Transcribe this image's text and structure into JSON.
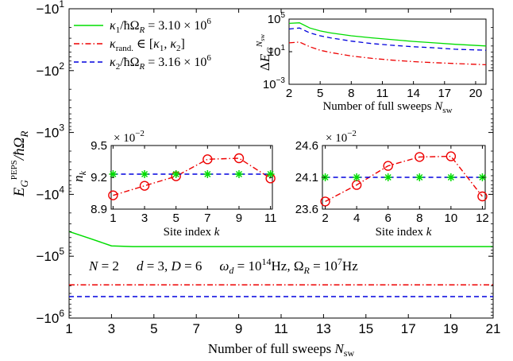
{
  "chart_data": [
    {
      "id": "main",
      "type": "line",
      "xlabel": "Number of full sweeps N_sw",
      "ylabel": "E_G^PEPS / ħΩ_R",
      "yscale": "log-negative",
      "xlim": [
        1,
        21
      ],
      "ylim": [
        -1000000,
        -10
      ],
      "xticks": [
        "1",
        "3",
        "5",
        "7",
        "9",
        "11",
        "13",
        "15",
        "17",
        "19",
        "21"
      ],
      "yticks": [
        {
          "base": "−10",
          "exp": "1"
        },
        {
          "base": "−10",
          "exp": "2"
        },
        {
          "base": "−10",
          "exp": "3"
        },
        {
          "base": "−10",
          "exp": "4"
        },
        {
          "base": "−10",
          "exp": "5"
        },
        {
          "base": "−10",
          "exp": "6"
        }
      ],
      "legend_position": "top-left",
      "annotation": "N = 2     d = 3, D = 6     ω_d = 10^14 Hz, Ω_R = 10^7 Hz",
      "series": [
        {
          "name": "κ1/ħΩ_R = 3.10 × 10^6",
          "color": "#00dd00",
          "dash": "solid",
          "x": [
            1,
            2,
            3,
            4,
            5,
            6,
            7,
            8,
            9,
            10,
            11,
            12,
            13,
            14,
            15,
            16,
            17,
            18,
            19,
            20,
            21
          ],
          "y": [
            -40000,
            -52000,
            -68000,
            -70000,
            -70000,
            -70000,
            -70000,
            -70000,
            -70000,
            -70000,
            -70000,
            -70000,
            -70000,
            -70000,
            -70000,
            -70000,
            -70000,
            -70000,
            -70000,
            -70000,
            -70000
          ]
        },
        {
          "name": "κ_rand. ∈ [κ1, κ2]",
          "color": "#ee0000",
          "dash": "dashdot",
          "x": [
            1,
            2,
            3,
            4,
            5,
            6,
            7,
            8,
            9,
            10,
            11,
            12,
            13,
            14,
            15,
            16,
            17,
            18,
            19,
            20,
            21
          ],
          "y": [
            -290000,
            -290000,
            -290000,
            -290000,
            -290000,
            -290000,
            -290000,
            -290000,
            -290000,
            -290000,
            -290000,
            -290000,
            -290000,
            -290000,
            -290000,
            -290000,
            -290000,
            -290000,
            -290000,
            -290000,
            -290000
          ]
        },
        {
          "name": "κ2/ħΩ_R = 3.16 × 10^6",
          "color": "#0000dd",
          "dash": "dashed",
          "x": [
            1,
            2,
            3,
            4,
            5,
            6,
            7,
            8,
            9,
            10,
            11,
            12,
            13,
            14,
            15,
            16,
            17,
            18,
            19,
            20,
            21
          ],
          "y": [
            -450000,
            -450000,
            -450000,
            -450000,
            -450000,
            -450000,
            -450000,
            -450000,
            -450000,
            -450000,
            -450000,
            -450000,
            -450000,
            -450000,
            -450000,
            -450000,
            -450000,
            -450000,
            -450000,
            -450000,
            -450000
          ]
        }
      ]
    },
    {
      "id": "inset_energy",
      "type": "line",
      "ylabel": "ΔE_G^(N_sw)",
      "xlabel": "Number of full sweeps N_sw",
      "yscale": "log",
      "xlim": [
        2,
        21
      ],
      "ylim": [
        0.001,
        100000
      ],
      "xticks": [
        "2",
        "5",
        "8",
        "11",
        "14",
        "17",
        "20"
      ],
      "yticks": [
        {
          "base": "10",
          "exp": "5"
        },
        {
          "base": "10",
          "exp": "1"
        },
        {
          "base": "10",
          "exp": "−3"
        }
      ],
      "series": [
        {
          "color": "#00dd00",
          "dash": "solid",
          "x": [
            2,
            3,
            4,
            5,
            6,
            8,
            10,
            12,
            14,
            16,
            18,
            21
          ],
          "y": [
            30000,
            35000,
            8000,
            3500,
            2000,
            900,
            500,
            300,
            180,
            120,
            80,
            50
          ]
        },
        {
          "color": "#0000dd",
          "dash": "dashed",
          "x": [
            2,
            3,
            4,
            5,
            6,
            8,
            10,
            12,
            14,
            16,
            18,
            21
          ],
          "y": [
            6000,
            8000,
            2000,
            900,
            500,
            200,
            100,
            60,
            40,
            30,
            20,
            15
          ]
        },
        {
          "color": "#ee0000",
          "dash": "dashdot",
          "x": [
            2,
            3,
            4,
            5,
            6,
            8,
            10,
            12,
            14,
            16,
            18,
            21
          ],
          "y": [
            120,
            150,
            40,
            15,
            8,
            3,
            1.5,
            0.9,
            0.6,
            0.45,
            0.35,
            0.25
          ]
        }
      ]
    },
    {
      "id": "inset_occupation_odd",
      "type": "line",
      "xlabel": "Site index k",
      "ylabel": "n_k",
      "ylim": [
        8.9,
        9.5
      ],
      "scale_label": "× 10^−2",
      "xticks": [
        "1",
        "3",
        "5",
        "7",
        "9",
        "11"
      ],
      "yticks": [
        "9.5",
        "9.2",
        "8.9"
      ],
      "series": [
        {
          "color": "#ee0000",
          "dash": "dashdot",
          "marker": "circle",
          "x": [
            1,
            3,
            5,
            7,
            9,
            11
          ],
          "y": [
            9.03,
            9.12,
            9.21,
            9.37,
            9.38,
            9.19
          ]
        },
        {
          "color": "#0000dd",
          "dash": "dashed",
          "marker": "none",
          "x": [
            1,
            3,
            5,
            7,
            9,
            11
          ],
          "y": [
            9.23,
            9.23,
            9.23,
            9.23,
            9.23,
            9.23
          ]
        },
        {
          "color": "#00dd00",
          "dash": "none",
          "marker": "asterisk",
          "x": [
            1,
            3,
            5,
            7,
            9,
            11
          ],
          "y": [
            9.23,
            9.23,
            9.23,
            9.23,
            9.23,
            9.23
          ]
        }
      ]
    },
    {
      "id": "inset_occupation_even",
      "type": "line",
      "xlabel": "Site index k",
      "ylim": [
        23.6,
        24.6
      ],
      "scale_label": "× 10^−2",
      "xticks": [
        "2",
        "4",
        "6",
        "8",
        "10",
        "12"
      ],
      "yticks": [
        "24.6",
        "24.1",
        "23.6"
      ],
      "series": [
        {
          "color": "#ee0000",
          "dash": "dashdot",
          "marker": "circle",
          "x": [
            2,
            4,
            6,
            8,
            10,
            12
          ],
          "y": [
            23.72,
            23.98,
            24.28,
            24.42,
            24.43,
            23.8
          ]
        },
        {
          "color": "#0000dd",
          "dash": "dashed",
          "marker": "none",
          "x": [
            2,
            4,
            6,
            8,
            10,
            12
          ],
          "y": [
            24.1,
            24.1,
            24.1,
            24.1,
            24.1,
            24.1
          ]
        },
        {
          "color": "#00dd00",
          "dash": "none",
          "marker": "asterisk",
          "x": [
            2,
            4,
            6,
            8,
            10,
            12
          ],
          "y": [
            24.1,
            24.1,
            24.1,
            24.1,
            24.1,
            24.1
          ]
        }
      ]
    }
  ]
}
